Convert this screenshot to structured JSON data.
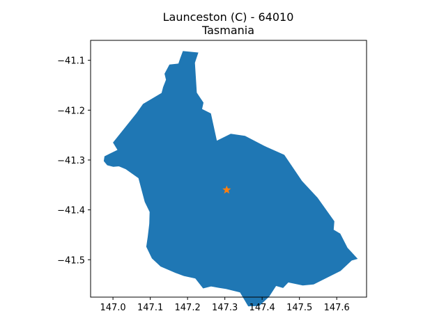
{
  "title": {
    "line1": "Launceston (C) - 64010",
    "line2": "Tasmania"
  },
  "chart_data": {
    "type": "map",
    "region_name": "Launceston (C)",
    "region_code": "64010",
    "state": "Tasmania",
    "xlim": [
      146.94,
      147.68
    ],
    "ylim": [
      -41.575,
      -41.06
    ],
    "x_ticks": [
      147.0,
      147.1,
      147.2,
      147.3,
      147.4,
      147.5,
      147.6
    ],
    "x_tick_labels": [
      "147.0",
      "147.1",
      "147.2",
      "147.3",
      "147.4",
      "147.5",
      "147.6"
    ],
    "y_ticks": [
      -41.1,
      -41.2,
      -41.3,
      -41.4,
      -41.5
    ],
    "y_tick_labels": [
      "−41.1",
      "−41.2",
      "−41.3",
      "−41.4",
      "−41.5"
    ],
    "polygon_color": "#1f77b4",
    "marker_color": "#ff7f0e",
    "marker": {
      "type": "star",
      "lon": 147.305,
      "lat": -41.36
    },
    "boundary": [
      [
        147.188,
        -41.082
      ],
      [
        147.228,
        -41.085
      ],
      [
        147.219,
        -41.105
      ],
      [
        147.224,
        -41.165
      ],
      [
        147.232,
        -41.174
      ],
      [
        147.242,
        -41.185
      ],
      [
        147.238,
        -41.198
      ],
      [
        147.262,
        -41.207
      ],
      [
        147.278,
        -41.262
      ],
      [
        147.316,
        -41.248
      ],
      [
        147.354,
        -41.252
      ],
      [
        147.405,
        -41.272
      ],
      [
        147.459,
        -41.29
      ],
      [
        147.506,
        -41.342
      ],
      [
        147.548,
        -41.376
      ],
      [
        147.593,
        -41.423
      ],
      [
        147.591,
        -41.44
      ],
      [
        147.609,
        -41.448
      ],
      [
        147.628,
        -41.476
      ],
      [
        147.655,
        -41.498
      ],
      [
        147.64,
        -41.501
      ],
      [
        147.61,
        -41.522
      ],
      [
        147.57,
        -41.537
      ],
      [
        147.538,
        -41.549
      ],
      [
        147.509,
        -41.551
      ],
      [
        147.47,
        -41.545
      ],
      [
        147.456,
        -41.556
      ],
      [
        147.437,
        -41.552
      ],
      [
        147.418,
        -41.574
      ],
      [
        147.392,
        -41.592
      ],
      [
        147.363,
        -41.593
      ],
      [
        147.341,
        -41.565
      ],
      [
        147.303,
        -41.558
      ],
      [
        147.285,
        -41.556
      ],
      [
        147.263,
        -41.553
      ],
      [
        147.242,
        -41.557
      ],
      [
        147.221,
        -41.537
      ],
      [
        147.19,
        -41.532
      ],
      [
        147.168,
        -41.526
      ],
      [
        147.128,
        -41.513
      ],
      [
        147.105,
        -41.497
      ],
      [
        147.09,
        -41.474
      ],
      [
        147.094,
        -41.454
      ],
      [
        147.098,
        -41.428
      ],
      [
        147.099,
        -41.404
      ],
      [
        147.086,
        -41.384
      ],
      [
        147.076,
        -41.356
      ],
      [
        147.069,
        -41.336
      ],
      [
        147.035,
        -41.318
      ],
      [
        147.016,
        -41.312
      ],
      [
        147.001,
        -41.313
      ],
      [
        146.985,
        -41.31
      ],
      [
        146.976,
        -41.302
      ],
      [
        146.978,
        -41.293
      ],
      [
        146.991,
        -41.288
      ],
      [
        147.013,
        -41.28
      ],
      [
        147.001,
        -41.265
      ],
      [
        147.064,
        -41.206
      ],
      [
        147.081,
        -41.188
      ],
      [
        147.131,
        -41.166
      ],
      [
        147.135,
        -41.154
      ],
      [
        147.143,
        -41.139
      ],
      [
        147.139,
        -41.127
      ],
      [
        147.152,
        -41.109
      ],
      [
        147.176,
        -41.107
      ],
      [
        147.181,
        -41.096
      ]
    ]
  }
}
